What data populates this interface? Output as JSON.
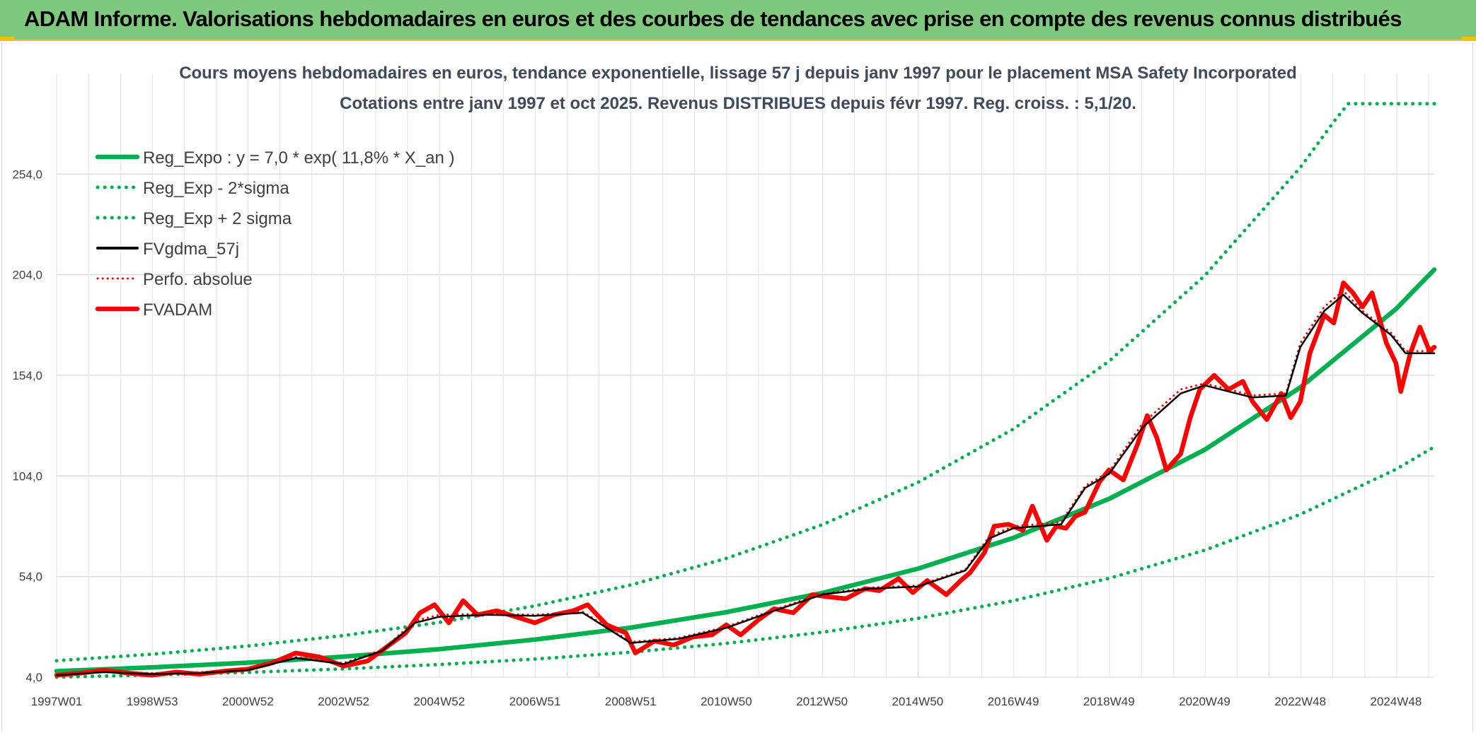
{
  "banner": {
    "title": "ADAM Informe. Valorisations hebdomadaires en euros et des courbes de tendances avec prise en compte des revenus connus distribués"
  },
  "colors": {
    "banner_bg": "#7fc97f",
    "reg_expo": "#00b050",
    "reg_band": "#00b050",
    "fvgdma": "#000000",
    "perfo": "#ff0000",
    "fvadam": "#ff0000",
    "grid": "#d9d9d9"
  },
  "chart_data": {
    "type": "line",
    "title": "Cours moyens hebdomadaires en euros, tendance exponentielle, lissage 57 j depuis janv 1997 pour le placement MSA Safety Incorporated",
    "subtitle": "Cotations entre janv 1997 et oct 2025. Revenus DISTRIBUES depuis févr 1997. Reg. croiss. : 5,1/20.",
    "xlabel": "",
    "ylabel": "",
    "x_range": [
      1997.0,
      2025.8
    ],
    "ylim": [
      4.0,
      304.0
    ],
    "y_ticks": [
      4.0,
      54.0,
      104.0,
      154.0,
      204.0,
      254.0
    ],
    "y_tick_labels": [
      "4,0",
      "54,0",
      "104,0",
      "154,0",
      "204,0",
      "254,0"
    ],
    "x_ticks": [
      1997.0,
      1999.0,
      2001.0,
      2003.0,
      2005.0,
      2007.0,
      2009.0,
      2011.0,
      2013.0,
      2015.0,
      2017.0,
      2019.0,
      2021.0,
      2023.0,
      2025.0
    ],
    "x_tick_labels": [
      "1997W01",
      "1998W53",
      "2000W52",
      "2002W52",
      "2004W52",
      "2006W51",
      "2008W51",
      "2010W50",
      "2012W50",
      "2014W50",
      "2016W49",
      "2018W49",
      "2020W49",
      "2022W48",
      "2024W48"
    ],
    "grid": true,
    "legend_position": "top-left",
    "legend": [
      {
        "key": "reg_expo",
        "label": "Reg_Expo : y = 7,0 * exp( 11,8% *  X_an )",
        "style": "solid-thick",
        "color": "#00b050"
      },
      {
        "key": "reg_minus",
        "label": "Reg_Exp - 2*sigma",
        "style": "dotted",
        "color": "#00b050"
      },
      {
        "key": "reg_plus",
        "label": "Reg_Exp + 2 sigma",
        "style": "dotted",
        "color": "#00b050"
      },
      {
        "key": "fvgdma",
        "label": "FVgdma_57j",
        "style": "solid",
        "color": "#000000"
      },
      {
        "key": "perfo",
        "label": "Perfo. absolue",
        "style": "dotted",
        "color": "#ff0000"
      },
      {
        "key": "fvadam",
        "label": "FVADAM",
        "style": "solid-thick",
        "color": "#ff0000"
      }
    ],
    "series": [
      {
        "name": "Reg_Expo",
        "style": "solid-thick",
        "color": "#00b050",
        "points": [
          [
            1997.0,
            7.0
          ],
          [
            1999.0,
            8.9
          ],
          [
            2001.0,
            11.2
          ],
          [
            2003.0,
            14.2
          ],
          [
            2005.0,
            17.9
          ],
          [
            2007.0,
            22.7
          ],
          [
            2009.0,
            28.6
          ],
          [
            2011.0,
            36.3
          ],
          [
            2013.0,
            45.8
          ],
          [
            2015.0,
            57.9
          ],
          [
            2017.0,
            73.2
          ],
          [
            2019.0,
            92.6
          ],
          [
            2021.0,
            117.0
          ],
          [
            2023.0,
            148.0
          ],
          [
            2025.0,
            187.0
          ],
          [
            2025.8,
            206.5
          ]
        ]
      },
      {
        "name": "Reg_Exp - 2*sigma",
        "style": "dotted",
        "color": "#00b050",
        "points": [
          [
            1997.0,
            4.0
          ],
          [
            1999.0,
            5.1
          ],
          [
            2001.0,
            6.4
          ],
          [
            2003.0,
            8.1
          ],
          [
            2005.0,
            10.3
          ],
          [
            2007.0,
            13.0
          ],
          [
            2009.0,
            16.4
          ],
          [
            2011.0,
            20.8
          ],
          [
            2013.0,
            26.3
          ],
          [
            2015.0,
            33.2
          ],
          [
            2017.0,
            42.0
          ],
          [
            2019.0,
            53.1
          ],
          [
            2021.0,
            67.1
          ],
          [
            2023.0,
            84.9
          ],
          [
            2025.0,
            107.3
          ],
          [
            2025.8,
            118.4
          ]
        ]
      },
      {
        "name": "Reg_Exp + 2 sigma",
        "style": "dotted",
        "color": "#00b050",
        "points": [
          [
            1997.0,
            12.2
          ],
          [
            1999.0,
            15.4
          ],
          [
            2001.0,
            19.5
          ],
          [
            2003.0,
            24.7
          ],
          [
            2005.0,
            31.2
          ],
          [
            2007.0,
            39.4
          ],
          [
            2009.0,
            49.8
          ],
          [
            2011.0,
            63.0
          ],
          [
            2013.0,
            79.7
          ],
          [
            2015.0,
            100.7
          ],
          [
            2017.0,
            127.3
          ],
          [
            2019.0,
            161.0
          ],
          [
            2021.0,
            203.5
          ],
          [
            2023.0,
            257.3
          ],
          [
            2023.7,
            280.0
          ],
          [
            2024.0,
            289.0
          ],
          [
            2025.8,
            289.0
          ]
        ]
      },
      {
        "name": "FVgdma_57j",
        "style": "solid",
        "color": "#000000",
        "points": [
          [
            1997.0,
            5.0
          ],
          [
            1998.0,
            6.5
          ],
          [
            1999.0,
            5.5
          ],
          [
            2000.0,
            6.0
          ],
          [
            2001.0,
            7.5
          ],
          [
            2002.0,
            13.5
          ],
          [
            2003.0,
            10.5
          ],
          [
            2003.8,
            17.0
          ],
          [
            2004.5,
            31.0
          ],
          [
            2005.0,
            34.0
          ],
          [
            2006.0,
            35.0
          ],
          [
            2007.0,
            34.5
          ],
          [
            2008.0,
            36.0
          ],
          [
            2009.0,
            21.0
          ],
          [
            2010.0,
            23.0
          ],
          [
            2011.0,
            28.5
          ],
          [
            2012.0,
            37.0
          ],
          [
            2013.0,
            45.0
          ],
          [
            2014.0,
            48.0
          ],
          [
            2015.0,
            49.0
          ],
          [
            2016.0,
            57.0
          ],
          [
            2016.5,
            73.0
          ],
          [
            2017.0,
            78.0
          ],
          [
            2018.0,
            80.0
          ],
          [
            2018.5,
            98.0
          ],
          [
            2019.0,
            105.0
          ],
          [
            2019.7,
            128.0
          ],
          [
            2020.5,
            145.0
          ],
          [
            2021.0,
            149.0
          ],
          [
            2021.5,
            146.0
          ],
          [
            2022.0,
            143.0
          ],
          [
            2022.7,
            144.0
          ],
          [
            2023.0,
            168.0
          ],
          [
            2023.5,
            186.0
          ],
          [
            2023.9,
            194.0
          ],
          [
            2024.3,
            185.0
          ],
          [
            2024.9,
            174.0
          ],
          [
            2025.2,
            165.0
          ],
          [
            2025.8,
            165.0
          ]
        ]
      },
      {
        "name": "Perfo. absolue",
        "style": "dotted",
        "color": "#ff0000",
        "points": [
          [
            1997.0,
            5.5
          ],
          [
            1998.0,
            7.0
          ],
          [
            1999.0,
            6.0
          ],
          [
            2000.0,
            6.5
          ],
          [
            2001.0,
            8.0
          ],
          [
            2002.0,
            14.0
          ],
          [
            2003.0,
            11.0
          ],
          [
            2003.8,
            17.5
          ],
          [
            2004.5,
            32.0
          ],
          [
            2005.0,
            35.0
          ],
          [
            2006.0,
            35.5
          ],
          [
            2007.0,
            35.0
          ],
          [
            2008.0,
            36.5
          ],
          [
            2009.0,
            21.5
          ],
          [
            2010.0,
            23.5
          ],
          [
            2011.0,
            29.0
          ],
          [
            2012.0,
            37.5
          ],
          [
            2013.0,
            45.5
          ],
          [
            2014.0,
            48.5
          ],
          [
            2015.0,
            49.5
          ],
          [
            2016.0,
            57.5
          ],
          [
            2016.5,
            74.0
          ],
          [
            2017.0,
            79.0
          ],
          [
            2018.0,
            81.0
          ],
          [
            2018.5,
            99.0
          ],
          [
            2019.0,
            106.0
          ],
          [
            2019.7,
            130.0
          ],
          [
            2020.5,
            147.0
          ],
          [
            2021.0,
            150.0
          ],
          [
            2021.5,
            147.0
          ],
          [
            2022.0,
            144.0
          ],
          [
            2022.7,
            145.0
          ],
          [
            2023.0,
            170.0
          ],
          [
            2023.5,
            188.0
          ],
          [
            2023.9,
            196.0
          ],
          [
            2024.3,
            186.0
          ],
          [
            2024.9,
            175.0
          ],
          [
            2025.2,
            166.0
          ],
          [
            2025.8,
            166.0
          ]
        ]
      },
      {
        "name": "FVADAM",
        "style": "solid-thick",
        "color": "#ff0000",
        "points": [
          [
            1997.0,
            5.0
          ],
          [
            1997.5,
            6.0
          ],
          [
            1998.0,
            7.5
          ],
          [
            1998.5,
            6.0
          ],
          [
            1999.0,
            5.0
          ],
          [
            1999.5,
            6.5
          ],
          [
            2000.0,
            5.5
          ],
          [
            2000.5,
            7.0
          ],
          [
            2001.0,
            8.0
          ],
          [
            2001.5,
            11.0
          ],
          [
            2002.0,
            16.0
          ],
          [
            2002.5,
            14.0
          ],
          [
            2003.0,
            9.5
          ],
          [
            2003.5,
            12.0
          ],
          [
            2003.9,
            19.0
          ],
          [
            2004.3,
            26.0
          ],
          [
            2004.6,
            36.0
          ],
          [
            2004.9,
            40.0
          ],
          [
            2005.2,
            31.0
          ],
          [
            2005.5,
            42.0
          ],
          [
            2005.8,
            35.0
          ],
          [
            2006.2,
            37.0
          ],
          [
            2006.6,
            34.0
          ],
          [
            2007.0,
            31.0
          ],
          [
            2007.4,
            35.0
          ],
          [
            2007.8,
            37.0
          ],
          [
            2008.1,
            40.0
          ],
          [
            2008.5,
            30.0
          ],
          [
            2008.9,
            26.0
          ],
          [
            2009.1,
            16.0
          ],
          [
            2009.5,
            22.0
          ],
          [
            2009.9,
            20.0
          ],
          [
            2010.3,
            24.0
          ],
          [
            2010.7,
            25.0
          ],
          [
            2011.0,
            30.0
          ],
          [
            2011.3,
            25.0
          ],
          [
            2011.7,
            33.0
          ],
          [
            2012.0,
            38.0
          ],
          [
            2012.4,
            36.0
          ],
          [
            2012.8,
            45.0
          ],
          [
            2013.1,
            44.0
          ],
          [
            2013.5,
            43.0
          ],
          [
            2013.9,
            48.0
          ],
          [
            2014.2,
            47.0
          ],
          [
            2014.6,
            53.0
          ],
          [
            2014.9,
            46.0
          ],
          [
            2015.2,
            52.0
          ],
          [
            2015.6,
            45.0
          ],
          [
            2015.9,
            52.0
          ],
          [
            2016.1,
            56.0
          ],
          [
            2016.4,
            66.0
          ],
          [
            2016.6,
            79.0
          ],
          [
            2016.9,
            80.0
          ],
          [
            2017.2,
            77.0
          ],
          [
            2017.4,
            89.0
          ],
          [
            2017.7,
            72.0
          ],
          [
            2017.9,
            79.0
          ],
          [
            2018.1,
            78.0
          ],
          [
            2018.3,
            84.0
          ],
          [
            2018.5,
            86.0
          ],
          [
            2018.8,
            101.0
          ],
          [
            2019.0,
            107.0
          ],
          [
            2019.3,
            102.0
          ],
          [
            2019.6,
            120.0
          ],
          [
            2019.8,
            134.0
          ],
          [
            2020.0,
            123.0
          ],
          [
            2020.2,
            107.0
          ],
          [
            2020.5,
            115.0
          ],
          [
            2020.7,
            133.0
          ],
          [
            2020.9,
            147.0
          ],
          [
            2021.2,
            154.0
          ],
          [
            2021.5,
            147.0
          ],
          [
            2021.8,
            151.0
          ],
          [
            2022.0,
            141.0
          ],
          [
            2022.3,
            132.0
          ],
          [
            2022.6,
            145.0
          ],
          [
            2022.8,
            133.0
          ],
          [
            2023.0,
            141.0
          ],
          [
            2023.2,
            165.0
          ],
          [
            2023.5,
            184.0
          ],
          [
            2023.7,
            180.0
          ],
          [
            2023.9,
            200.0
          ],
          [
            2024.1,
            195.0
          ],
          [
            2024.3,
            188.0
          ],
          [
            2024.5,
            195.0
          ],
          [
            2024.8,
            170.0
          ],
          [
            2025.0,
            160.0
          ],
          [
            2025.1,
            146.0
          ],
          [
            2025.3,
            165.0
          ],
          [
            2025.5,
            178.0
          ],
          [
            2025.7,
            166.0
          ],
          [
            2025.8,
            168.0
          ]
        ]
      }
    ]
  }
}
